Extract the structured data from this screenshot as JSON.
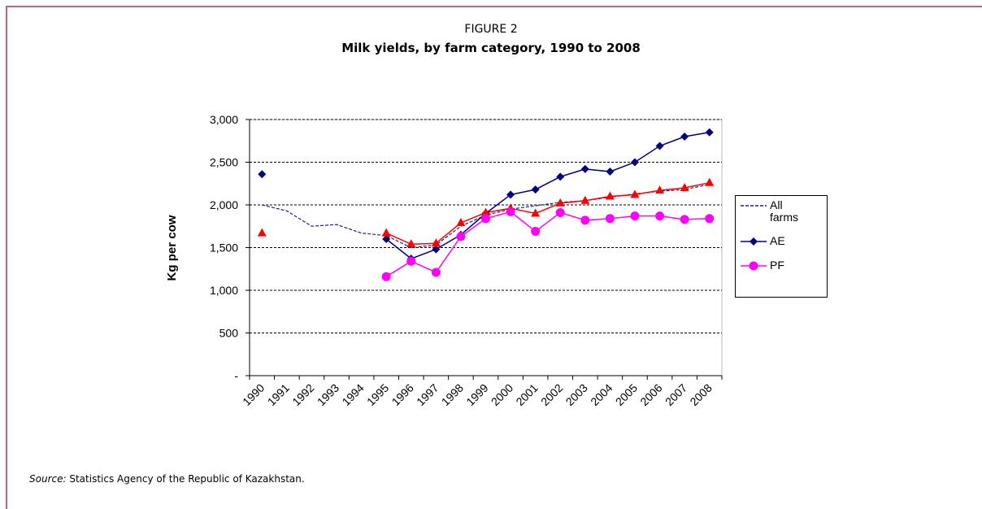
{
  "chart_data": {
    "type": "line",
    "figure_label": "FIGURE 2",
    "title": "Milk yields, by farm category, 1990 to 2008",
    "y_label": "Kg per cow",
    "categories": [
      "1990",
      "1991",
      "1992",
      "1993",
      "1994",
      "1995",
      "1996",
      "1997",
      "1998",
      "1999",
      "2000",
      "2001",
      "2002",
      "2003",
      "2004",
      "2005",
      "2006",
      "2007",
      "2008"
    ],
    "ylim": [
      0,
      3000
    ],
    "yticks": [
      {
        "value": 0,
        "label": "-"
      },
      500,
      {
        "value": 1000,
        "label": "1,000"
      },
      {
        "value": 1500,
        "label": "1,500"
      },
      {
        "value": 2000,
        "label": "2,000"
      },
      {
        "value": 2500,
        "label": "2,500"
      },
      {
        "value": 3000,
        "label": "3,000"
      }
    ],
    "grid": true,
    "legend": "right",
    "series": [
      {
        "name": "All farms",
        "color": "#1f1f8f",
        "line_style": "dashed",
        "marker": "none",
        "values": [
          2000,
          1930,
          1750,
          1770,
          1670,
          1640,
          1500,
          1530,
          1750,
          1880,
          1950,
          1990,
          2030,
          2050,
          2090,
          2130,
          2160,
          2180,
          2240
        ]
      },
      {
        "name": "AE",
        "color": "#000080",
        "line_style": "solid",
        "marker": "diamond",
        "values": [
          2360,
          null,
          null,
          null,
          null,
          1600,
          1370,
          1480,
          1650,
          1900,
          2120,
          2180,
          2330,
          2420,
          2390,
          2500,
          2690,
          2800,
          2850
        ]
      },
      {
        "color": "#ff0000",
        "line_style": "solid",
        "marker": "triangle",
        "values": [
          1670,
          null,
          null,
          null,
          null,
          1670,
          1540,
          1550,
          1790,
          1910,
          1960,
          1900,
          2020,
          2050,
          2100,
          2120,
          2170,
          2200,
          2260
        ]
      },
      {
        "name": "PF",
        "color": "#ff00ff",
        "line_style": "solid",
        "marker": "circle",
        "values": [
          null,
          null,
          null,
          null,
          null,
          1160,
          1340,
          1210,
          1630,
          1840,
          1920,
          1690,
          1910,
          1820,
          1840,
          1870,
          1870,
          1830,
          1840
        ]
      }
    ],
    "source_label": "Source:",
    "source_text": "Statistics Agency of the Republic of Kazakhstan."
  }
}
